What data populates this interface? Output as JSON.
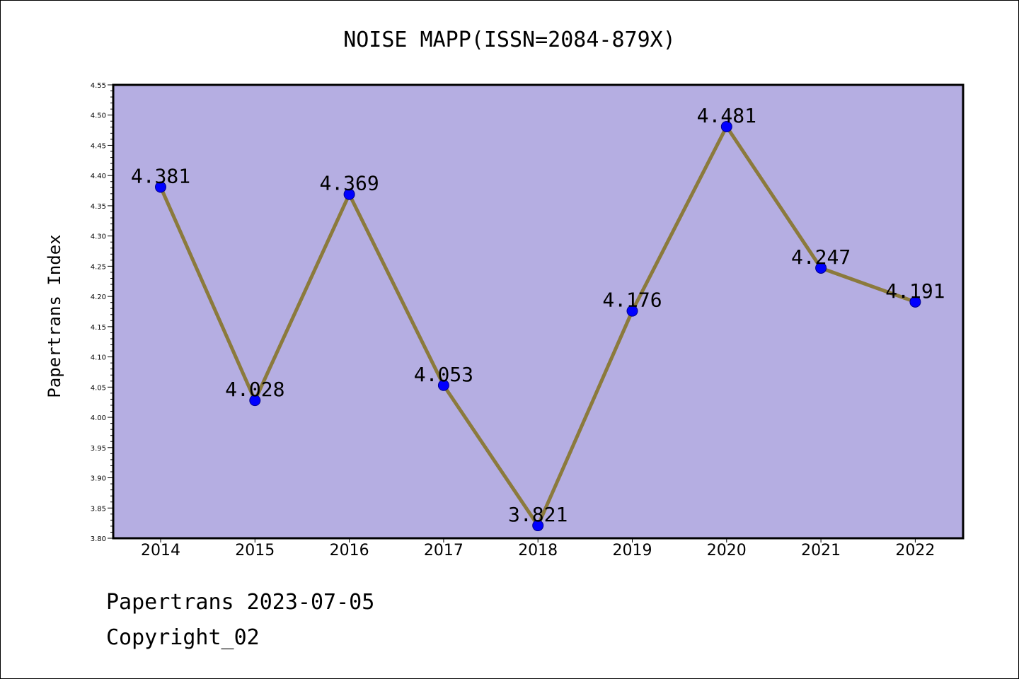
{
  "chart_data": {
    "type": "line",
    "title": "NOISE MAPP(ISSN=2084-879X)",
    "ylabel": "Papertrans Index",
    "xlabel": "",
    "categories": [
      "2014",
      "2015",
      "2016",
      "2017",
      "2018",
      "2019",
      "2020",
      "2021",
      "2022"
    ],
    "series": [
      {
        "values": [
          4.381,
          4.028,
          4.369,
          4.053,
          3.821,
          4.176,
          4.481,
          4.247,
          4.191
        ],
        "labels": [
          "4.381",
          "4.028",
          "4.369",
          "4.053",
          "3.821",
          "4.176",
          "4.481",
          "4.247",
          "4.191"
        ]
      }
    ],
    "ylim": [
      3.8,
      4.55
    ],
    "yticks": [
      "3.80",
      "3.85",
      "3.90",
      "3.95",
      "4.00",
      "4.05",
      "4.10",
      "4.15",
      "4.20",
      "4.25",
      "4.30",
      "4.35",
      "4.40",
      "4.45",
      "4.50",
      "4.55"
    ],
    "grid": false,
    "legend": "none",
    "colors": {
      "plot_background": "#b5aee2",
      "line": "#8b7a3c",
      "marker": "#0000ff",
      "marker_edge": "#00008b",
      "axis": "#000000"
    }
  },
  "footer": {
    "line1": "Papertrans 2023-07-05",
    "line2": "Copyright_02"
  }
}
